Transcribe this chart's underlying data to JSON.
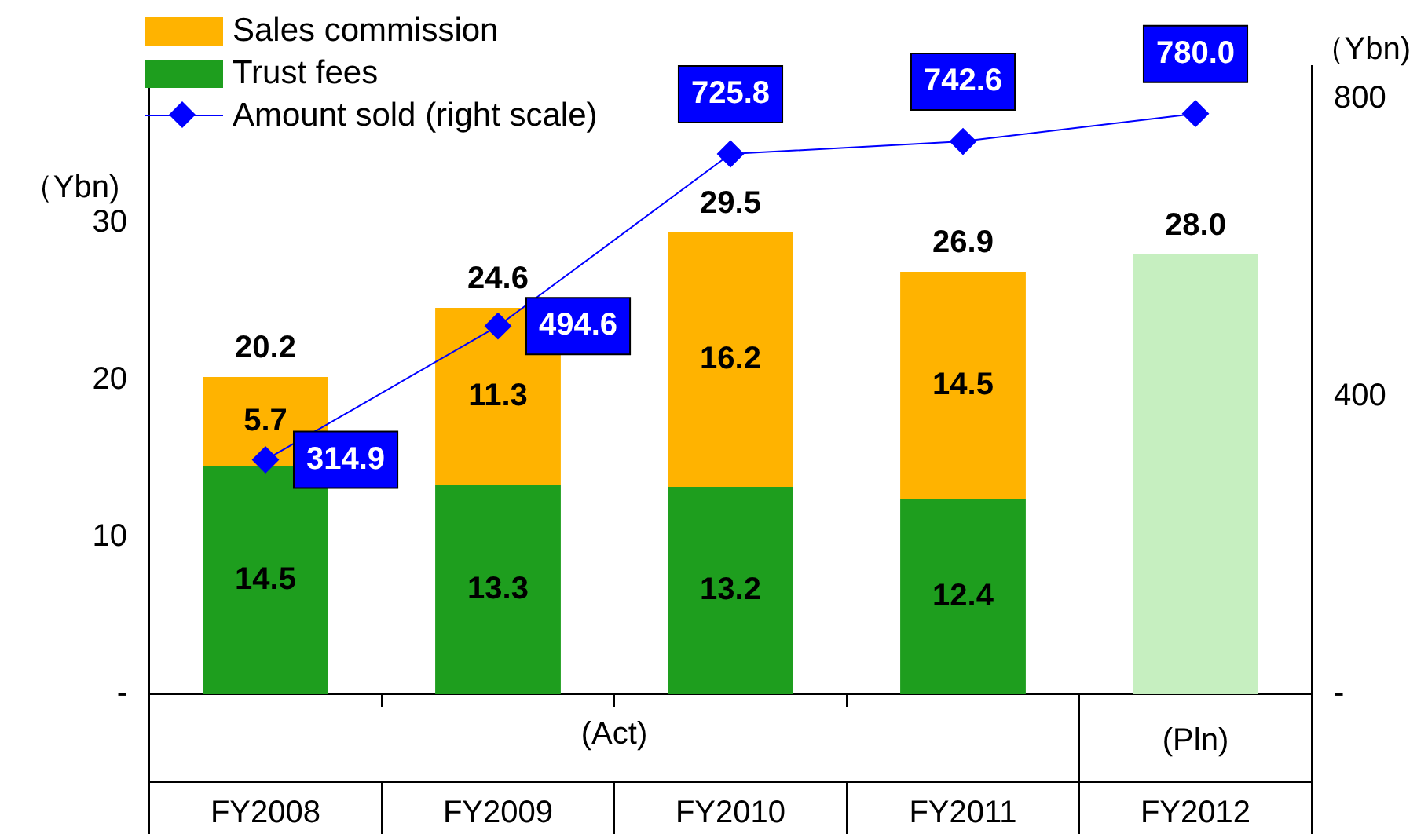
{
  "chart_data": {
    "type": "bar",
    "stacked": true,
    "categories": [
      "FY2008",
      "FY2009",
      "FY2010",
      "FY2011",
      "FY2012"
    ],
    "series": [
      {
        "name": "Trust fees",
        "color": "#1e9e1e",
        "values": [
          14.5,
          13.3,
          13.2,
          12.4,
          null
        ],
        "value_labels": [
          "14.5",
          "13.3",
          "13.2",
          "12.4",
          null
        ]
      },
      {
        "name": "Sales commission",
        "color": "#ffb300",
        "values": [
          5.7,
          11.3,
          16.2,
          14.5,
          null
        ],
        "value_labels": [
          "5.7",
          "11.3",
          "16.2",
          "14.5",
          null
        ]
      },
      {
        "color": "#c6efc0",
        "values": [
          null,
          null,
          null,
          null,
          28.0
        ]
      },
      {
        "name": "Amount sold (right scale)",
        "type": "line",
        "axis": "y2",
        "color": "#0000ff",
        "marker": "diamond",
        "values": [
          314.9,
          494.6,
          725.8,
          742.6,
          780.0
        ],
        "value_labels": [
          "314.9",
          "494.6",
          "725.8",
          "742.6",
          "780.0"
        ]
      }
    ],
    "totals": [
      "20.2",
      "24.6",
      "29.5",
      "26.9",
      "28.0"
    ],
    "ylim": [
      0,
      40
    ],
    "yticks": [
      {
        "value": 0,
        "label": "-"
      },
      10,
      20,
      30
    ],
    "y2lim": [
      0,
      844
    ],
    "y2ticks": [
      {
        "value": 0,
        "label": "-"
      },
      400,
      800
    ],
    "ylabel": "（Ybn)",
    "y2label": "（Ybn)",
    "annotations": [
      "(Act)",
      "(Pln)"
    ],
    "legend": "top left",
    "grid": false
  }
}
